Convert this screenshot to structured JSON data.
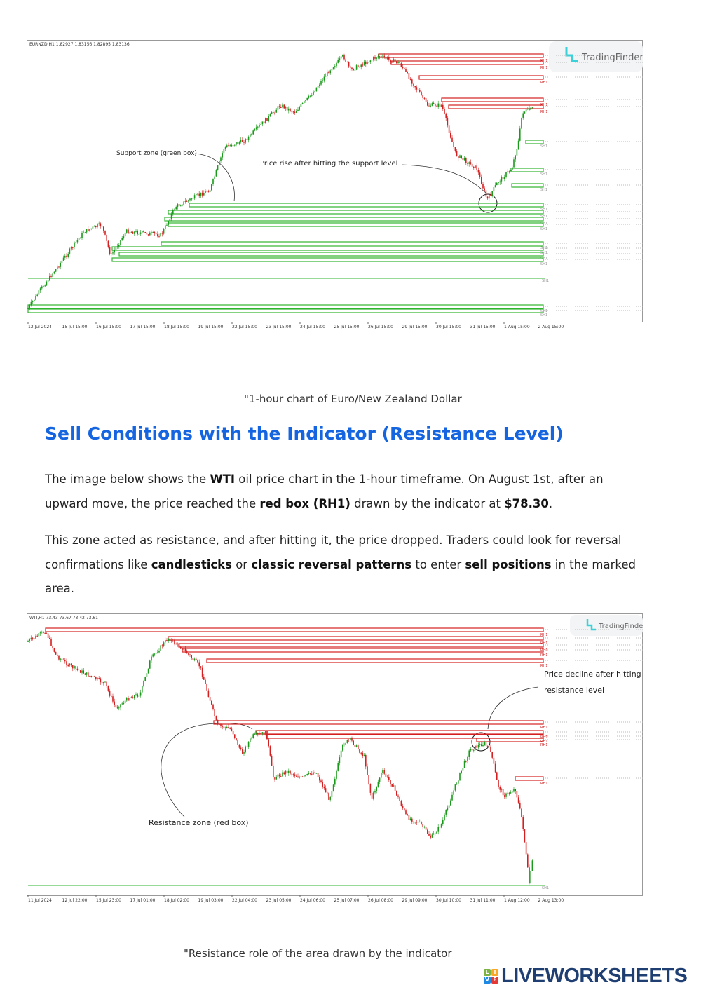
{
  "chart1": {
    "header": "EURNZD,H1  1.82927 1.83156 1.82895 1.83136",
    "logo": "TradingFinder",
    "annotation_support": "Support zone (green box)",
    "annotation_rise": "Price rise after hitting the support level",
    "x_labels": [
      "12 Jul 2024",
      "15 Jul 15:00",
      "16 Jul 15:00",
      "17 Jul 15:00",
      "18 Jul 15:00",
      "19 Jul 15:00",
      "22 Jul 15:00",
      "23 Jul 15:00",
      "24 Jul 15:00",
      "25 Jul 15:00",
      "26 Jul 15:00",
      "29 Jul 15:00",
      "30 Jul 15:00",
      "31 Jul 15:00",
      "1 Aug 15:00",
      "2 Aug 15:00"
    ],
    "resistance_label": "RH1",
    "support_label": "SH1",
    "caption": "\"1-hour chart of Euro/New Zealand Dollar"
  },
  "section": {
    "title": "Sell Conditions with the Indicator (Resistance Level)",
    "p1": [
      "The image below shows the ",
      "WTI",
      " oil price chart in the 1-hour timeframe. On August 1st, after an upward move, the price reached the ",
      "red box (RH1)",
      " drawn by the indicator at ",
      "$78.30",
      "."
    ],
    "p2": [
      "This zone acted as resistance, and after hitting it, the price dropped. Traders could look for reversal confirmations like ",
      "candlesticks",
      " or ",
      "classic reversal patterns",
      " to enter ",
      "sell positions",
      " in the marked area."
    ]
  },
  "chart2": {
    "header": "WTI,H1  73.43 73.67 73.42 73.61",
    "logo": "TradingFinder",
    "annotation_decline_1": "Price decline after hitting th",
    "annotation_decline_2": "resistance level",
    "annotation_zone": "Resistance zone (red box)",
    "x_labels": [
      "11 Jul 2024",
      "12 Jul 22:00",
      "15 Jul 23:00",
      "17 Jul 01:00",
      "18 Jul 02:00",
      "19 Jul 03:00",
      "22 Jul 04:00",
      "23 Jul 05:00",
      "24 Jul 06:00",
      "25 Jul 07:00",
      "26 Jul 08:00",
      "29 Jul 09:00",
      "30 Jul 10:00",
      "31 Jul 11:00",
      "1 Aug 12:00",
      "2 Aug 13:00"
    ],
    "resistance_label": "RH1",
    "support_label": "SH1",
    "caption": "\"Resistance role of the area drawn by the indicator"
  },
  "footer": {
    "brand": "LIVEWORKSHEETS",
    "tiles": [
      "L",
      "I",
      "V",
      "E"
    ]
  },
  "colors": {
    "bull": "#1a9a1a",
    "bear": "#d42020",
    "zone_red": "#d42020",
    "zone_green": "#2fb52f",
    "heading": "#1565e0"
  }
}
